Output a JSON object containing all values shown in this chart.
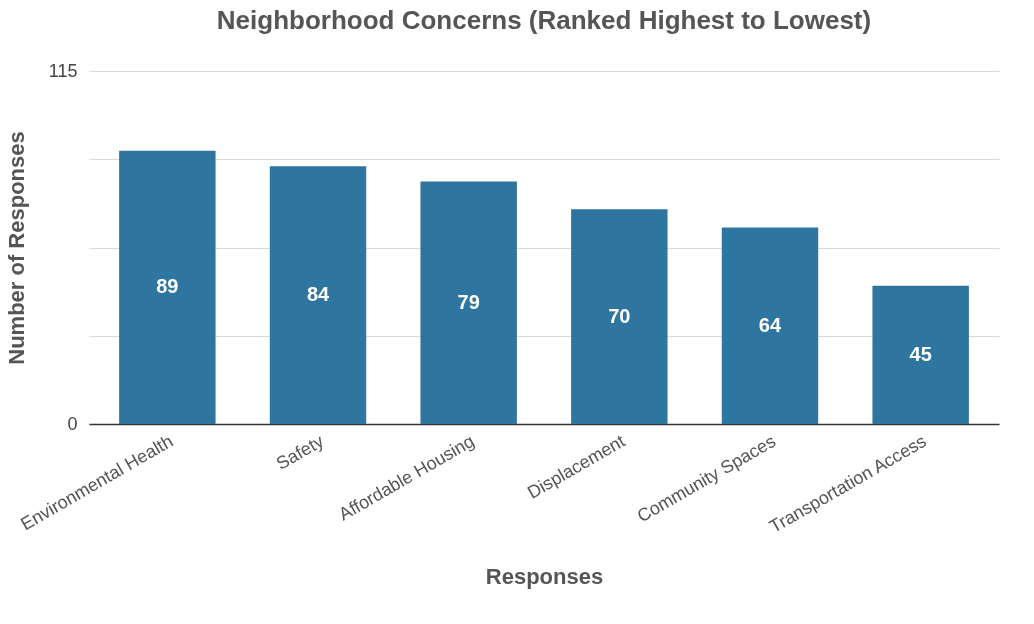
{
  "chart_data": {
    "type": "bar",
    "title": "Neighborhood Concerns (Ranked Highest to Lowest)",
    "xlabel": "Responses",
    "ylabel": "Number of Responses",
    "categories": [
      "Environmental Health",
      "Safety",
      "Affordable Housing",
      "Displacement",
      "Community Spaces",
      "Transportation Access"
    ],
    "values": [
      89,
      84,
      79,
      70,
      64,
      45
    ],
    "color": "#2e75a0",
    "ylim": [
      0,
      115
    ],
    "yticks": [
      0,
      {
        "value": 28.75,
        "label": null
      },
      {
        "value": 57.5,
        "label": null
      },
      {
        "value": 86.25,
        "label": null
      },
      115
    ],
    "grid": "y",
    "data_labels": true
  }
}
